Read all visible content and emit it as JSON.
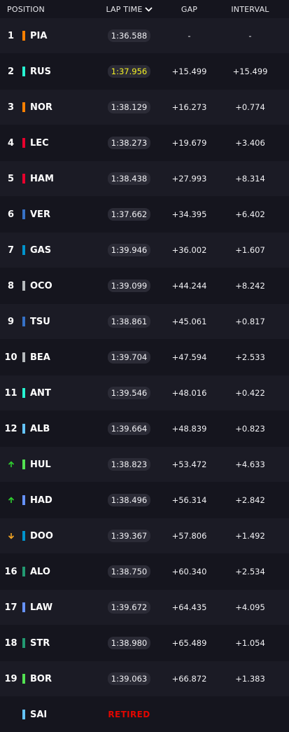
{
  "header": {
    "position": "POSITION",
    "lap_time": "LAP TIME",
    "gap": "GAP",
    "interval": "INTERVAL"
  },
  "colors": {
    "fastest_lap": "#f5f224",
    "gain": "#2fd12f",
    "loss": "#f5a623",
    "retired": "#e10600"
  },
  "rows": [
    {
      "pos": "1",
      "code": "PIA",
      "lap": "1:36.588",
      "gap": "-",
      "interval": "-",
      "color": "#ff8000"
    },
    {
      "pos": "2",
      "code": "RUS",
      "lap": "1:37.956",
      "gap": "+15.499",
      "interval": "+15.499",
      "color": "#27f4d2",
      "fastest": true
    },
    {
      "pos": "3",
      "code": "NOR",
      "lap": "1:38.129",
      "gap": "+16.273",
      "interval": "+0.774",
      "color": "#ff8000"
    },
    {
      "pos": "4",
      "code": "LEC",
      "lap": "1:38.273",
      "gap": "+19.679",
      "interval": "+3.406",
      "color": "#e8002d"
    },
    {
      "pos": "5",
      "code": "HAM",
      "lap": "1:38.438",
      "gap": "+27.993",
      "interval": "+8.314",
      "color": "#e8002d"
    },
    {
      "pos": "6",
      "code": "VER",
      "lap": "1:37.662",
      "gap": "+34.395",
      "interval": "+6.402",
      "color": "#3671c6"
    },
    {
      "pos": "7",
      "code": "GAS",
      "lap": "1:39.946",
      "gap": "+36.002",
      "interval": "+1.607",
      "color": "#0093cc"
    },
    {
      "pos": "8",
      "code": "OCO",
      "lap": "1:39.099",
      "gap": "+44.244",
      "interval": "+8.242",
      "color": "#b6babd"
    },
    {
      "pos": "9",
      "code": "TSU",
      "lap": "1:38.861",
      "gap": "+45.061",
      "interval": "+0.817",
      "color": "#3671c6"
    },
    {
      "pos": "10",
      "code": "BEA",
      "lap": "1:39.704",
      "gap": "+47.594",
      "interval": "+2.533",
      "color": "#b6babd"
    },
    {
      "pos": "11",
      "code": "ANT",
      "lap": "1:39.546",
      "gap": "+48.016",
      "interval": "+0.422",
      "color": "#27f4d2"
    },
    {
      "pos": "12",
      "code": "ALB",
      "lap": "1:39.664",
      "gap": "+48.839",
      "interval": "+0.823",
      "color": "#64c4ff"
    },
    {
      "pos": "",
      "icon": "up",
      "code": "HUL",
      "lap": "1:38.823",
      "gap": "+53.472",
      "interval": "+4.633",
      "color": "#52e252"
    },
    {
      "pos": "",
      "icon": "up",
      "code": "HAD",
      "lap": "1:38.496",
      "gap": "+56.314",
      "interval": "+2.842",
      "color": "#6692ff"
    },
    {
      "pos": "",
      "icon": "down",
      "code": "DOO",
      "lap": "1:39.367",
      "gap": "+57.806",
      "interval": "+1.492",
      "color": "#0093cc"
    },
    {
      "pos": "16",
      "code": "ALO",
      "lap": "1:38.750",
      "gap": "+60.340",
      "interval": "+2.534",
      "color": "#229971"
    },
    {
      "pos": "17",
      "code": "LAW",
      "lap": "1:39.672",
      "gap": "+64.435",
      "interval": "+4.095",
      "color": "#6692ff"
    },
    {
      "pos": "18",
      "code": "STR",
      "lap": "1:38.980",
      "gap": "+65.489",
      "interval": "+1.054",
      "color": "#229971"
    },
    {
      "pos": "19",
      "code": "BOR",
      "lap": "1:39.063",
      "gap": "+66.872",
      "interval": "+1.383",
      "color": "#52e252"
    },
    {
      "pos": "",
      "code": "SAI",
      "status": "RETIRED",
      "color": "#64c4ff"
    }
  ]
}
